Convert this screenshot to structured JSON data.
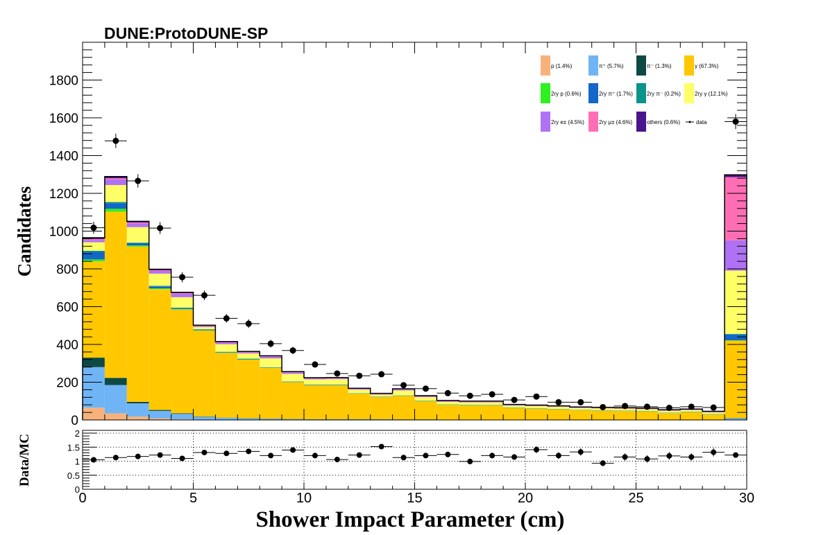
{
  "chart_data": {
    "type": "bar",
    "stacked": true,
    "title": "DUNE:ProtoDUNE-SP",
    "xlabel": "Shower Impact Parameter (cm)",
    "ylabel": "Candidates",
    "ratio_ylabel": "Data/MC",
    "xlim": [
      0,
      30
    ],
    "ylim": [
      0,
      2000
    ],
    "ratio_ylim": [
      0,
      2.1
    ],
    "x_ticks": [
      0,
      5,
      10,
      15,
      20,
      25,
      30
    ],
    "x_tick_labels": [
      "0",
      "5",
      "10",
      "15",
      "20",
      "25",
      "30"
    ],
    "y_ticks": [
      0,
      200,
      400,
      600,
      800,
      1000,
      1200,
      1400,
      1600,
      1800
    ],
    "y_tick_labels": [
      "0",
      "200",
      "400",
      "600",
      "800",
      "1000",
      "1200",
      "1400",
      "1600",
      "1800"
    ],
    "ratio_ticks": [
      0,
      0.5,
      1,
      1.5,
      2
    ],
    "ratio_tick_labels": [
      "0",
      "0.5",
      "1",
      "1.5",
      "2"
    ],
    "ratio_grid": [
      0.5,
      1,
      1.5,
      2
    ],
    "x_grid": [
      5,
      10,
      15,
      20,
      25
    ],
    "bin_edges": [
      0,
      1,
      2,
      3,
      4,
      5,
      6,
      7,
      8,
      9,
      10,
      11,
      12,
      13,
      14,
      15,
      16,
      17,
      18,
      19,
      20,
      21,
      22,
      23,
      24,
      25,
      26,
      27,
      28,
      29,
      30
    ],
    "legend_position": "top-right",
    "series": [
      {
        "name": "p (1.4%)",
        "color": "#f7b27b",
        "values": [
          65,
          35,
          18,
          8,
          4,
          2,
          1,
          1,
          1,
          1,
          1,
          1,
          1,
          1,
          0,
          0,
          0,
          0,
          0,
          0,
          0,
          0,
          0,
          0,
          0,
          0,
          0,
          0,
          0,
          0
        ]
      },
      {
        "name": "π⁺ (5.7%)",
        "color": "#6fb4f5",
        "values": [
          215,
          150,
          70,
          40,
          28,
          14,
          10,
          7,
          5,
          3,
          2,
          2,
          2,
          2,
          2,
          2,
          2,
          2,
          1,
          1,
          1,
          1,
          1,
          1,
          1,
          1,
          1,
          1,
          1,
          8
        ]
      },
      {
        "name": "π⁻ (1.3%)",
        "color": "#0e4a43",
        "values": [
          50,
          38,
          8,
          5,
          3,
          2,
          1,
          1,
          1,
          1,
          1,
          1,
          1,
          1,
          1,
          1,
          0,
          0,
          0,
          0,
          0,
          0,
          0,
          0,
          0,
          0,
          0,
          0,
          0,
          2
        ]
      },
      {
        "name": "γ (67.3%)",
        "color": "#ffc800",
        "values": [
          510,
          880,
          822,
          640,
          550,
          455,
          343,
          310,
          268,
          195,
          180,
          180,
          135,
          117,
          124,
          97,
          78,
          76,
          76,
          62,
          58,
          55,
          50,
          48,
          46,
          44,
          35,
          40,
          28,
          410
        ]
      },
      {
        "name": "2ry p (0.6%)",
        "color": "#2cf21f",
        "values": [
          10,
          15,
          6,
          4,
          3,
          2,
          2,
          2,
          1,
          1,
          1,
          1,
          1,
          1,
          1,
          1,
          1,
          1,
          1,
          1,
          1,
          1,
          1,
          1,
          1,
          1,
          1,
          1,
          1,
          2
        ]
      },
      {
        "name": "2ry π⁺ (1.7%)",
        "color": "#1267c9",
        "values": [
          40,
          30,
          12,
          10,
          5,
          4,
          3,
          3,
          2,
          2,
          2,
          2,
          1,
          1,
          1,
          1,
          1,
          1,
          1,
          1,
          1,
          1,
          1,
          1,
          1,
          1,
          1,
          1,
          1,
          30
        ]
      },
      {
        "name": "2ry π⁻ (0.2%)",
        "color": "#0a948c",
        "values": [
          6,
          6,
          3,
          3,
          2,
          1,
          1,
          1,
          1,
          1,
          1,
          1,
          1,
          1,
          1,
          1,
          1,
          1,
          1,
          1,
          1,
          1,
          1,
          1,
          1,
          1,
          1,
          1,
          1,
          4
        ]
      },
      {
        "name": "2ry γ (12.1%)",
        "color": "#ffff66",
        "values": [
          45,
          90,
          82,
          65,
          55,
          12,
          40,
          27,
          47,
          40,
          27,
          28,
          18,
          10,
          26,
          18,
          13,
          12,
          13,
          10,
          11,
          10,
          9,
          9,
          9,
          9,
          9,
          8,
          8,
          335
        ]
      },
      {
        "name": "2ry e± (4.5%)",
        "color": "#b072f5",
        "values": [
          12,
          30,
          20,
          14,
          18,
          4,
          8,
          5,
          9,
          8,
          5,
          5,
          4,
          3,
          5,
          4,
          3,
          3,
          3,
          2,
          2,
          2,
          2,
          2,
          2,
          2,
          2,
          2,
          2,
          160
        ]
      },
      {
        "name": "2ry μ± (4.6%)",
        "color": "#ff6eb4",
        "values": [
          5,
          6,
          5,
          4,
          4,
          2,
          3,
          3,
          2,
          2,
          2,
          2,
          2,
          2,
          2,
          2,
          2,
          2,
          2,
          2,
          2,
          2,
          2,
          2,
          2,
          2,
          2,
          2,
          2,
          335
        ]
      },
      {
        "name": "others (0.6%)",
        "color": "#4a148c",
        "values": [
          7,
          9,
          6,
          5,
          4,
          4,
          3,
          3,
          3,
          2,
          2,
          2,
          2,
          2,
          2,
          2,
          2,
          2,
          2,
          2,
          2,
          2,
          2,
          2,
          2,
          2,
          2,
          2,
          2,
          12
        ]
      }
    ],
    "data": {
      "name": "data",
      "x": [
        0.5,
        1.5,
        2.5,
        3.5,
        4.5,
        5.5,
        6.5,
        7.5,
        8.5,
        9.5,
        10.5,
        11.5,
        12.5,
        13.5,
        14.5,
        15.5,
        16.5,
        17.5,
        18.5,
        19.5,
        20.5,
        21.5,
        22.5,
        23.5,
        24.5,
        25.5,
        26.5,
        27.5,
        28.5,
        29.5
      ],
      "y": [
        1018,
        1478,
        1266,
        1016,
        756,
        660,
        538,
        510,
        404,
        368,
        294,
        246,
        234,
        242,
        184,
        166,
        142,
        128,
        136,
        106,
        124,
        94,
        94,
        68,
        74,
        70,
        64,
        70,
        66,
        1580
      ],
      "yerr": [
        32,
        38,
        36,
        32,
        27,
        26,
        23,
        23,
        20,
        19,
        17,
        16,
        15,
        16,
        14,
        13,
        12,
        11,
        12,
        10,
        11,
        10,
        10,
        8,
        9,
        8,
        8,
        8,
        8,
        40
      ]
    },
    "ratio": {
      "x": [
        0.5,
        1.5,
        2.5,
        3.5,
        4.5,
        5.5,
        6.5,
        7.5,
        8.5,
        9.5,
        10.5,
        11.5,
        12.5,
        13.5,
        14.5,
        15.5,
        16.5,
        17.5,
        18.5,
        19.5,
        20.5,
        21.5,
        22.5,
        23.5,
        24.5,
        25.5,
        26.5,
        27.5,
        28.5,
        29.5
      ],
      "y": [
        1.05,
        1.13,
        1.17,
        1.22,
        1.1,
        1.31,
        1.28,
        1.35,
        1.2,
        1.4,
        1.2,
        1.06,
        1.22,
        1.52,
        1.13,
        1.2,
        1.24,
        0.99,
        1.2,
        1.15,
        1.41,
        1.2,
        1.33,
        0.93,
        1.15,
        1.08,
        1.19,
        1.15,
        1.32,
        1.22
      ],
      "yerr": [
        0.04,
        0.05,
        0.05,
        0.05,
        0.05,
        0.06,
        0.07,
        0.07,
        0.07,
        0.08,
        0.08,
        0.07,
        0.08,
        0.09,
        0.08,
        0.09,
        0.1,
        0.09,
        0.1,
        0.1,
        0.12,
        0.12,
        0.13,
        0.11,
        0.13,
        0.13,
        0.14,
        0.13,
        0.15,
        0.04
      ]
    }
  }
}
